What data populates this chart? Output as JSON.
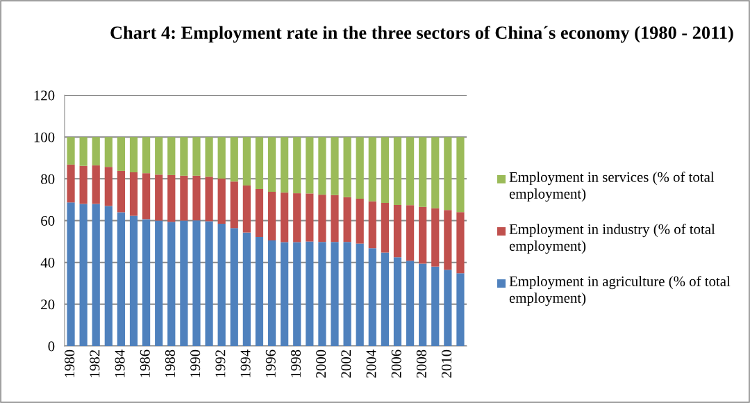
{
  "chart_data": {
    "type": "bar",
    "title": "Chart 4: Employment rate in the three sectors of China´s economy (1980 - 2011)",
    "categories": [
      "1980",
      null,
      "1982",
      null,
      "1984",
      null,
      "1986",
      null,
      "1988",
      null,
      "1990",
      null,
      "1992",
      null,
      "1994",
      null,
      "1996",
      null,
      "1998",
      null,
      "2000",
      null,
      "2002",
      null,
      "2004",
      null,
      "2006",
      null,
      "2008",
      null,
      "2010",
      null
    ],
    "stacked": true,
    "ylim": [
      0,
      120
    ],
    "yticks": [
      0,
      20,
      40,
      60,
      80,
      100,
      120
    ],
    "grid": "y",
    "legend": "right",
    "series": [
      {
        "name": "Employment in agriculture (% of total employment)",
        "color": "#4f81bd",
        "values": [
          68.7,
          68.0,
          68.0,
          67.0,
          64.0,
          62.3,
          60.7,
          60.0,
          59.4,
          60.0,
          60.1,
          59.7,
          58.5,
          56.4,
          54.3,
          52.2,
          50.5,
          49.7,
          49.7,
          50.0,
          49.8,
          49.8,
          49.8,
          49.0,
          46.8,
          44.7,
          42.5,
          40.8,
          39.4,
          38.0,
          36.5,
          34.8
        ]
      },
      {
        "name": "Employment in industry (% of total employment)",
        "color": "#c0504d",
        "values": [
          18.1,
          18.2,
          18.4,
          18.7,
          19.8,
          20.8,
          22.0,
          22.0,
          22.4,
          21.5,
          21.4,
          21.3,
          21.6,
          22.3,
          22.5,
          22.9,
          23.3,
          23.7,
          23.4,
          23.0,
          22.6,
          22.4,
          21.4,
          21.5,
          22.4,
          23.8,
          25.0,
          26.6,
          27.2,
          27.9,
          28.6,
          29.3
        ]
      },
      {
        "name": "Employment in services (% of total employment)",
        "color": "#9bbb59",
        "values": [
          13.2,
          13.8,
          13.6,
          14.3,
          16.2,
          16.9,
          17.3,
          18.0,
          18.2,
          18.5,
          18.5,
          19.0,
          19.9,
          21.3,
          23.2,
          24.9,
          26.2,
          26.6,
          26.9,
          27.0,
          27.6,
          27.8,
          28.8,
          29.5,
          30.8,
          31.5,
          32.5,
          32.6,
          33.4,
          34.1,
          34.9,
          35.9
        ]
      }
    ]
  }
}
